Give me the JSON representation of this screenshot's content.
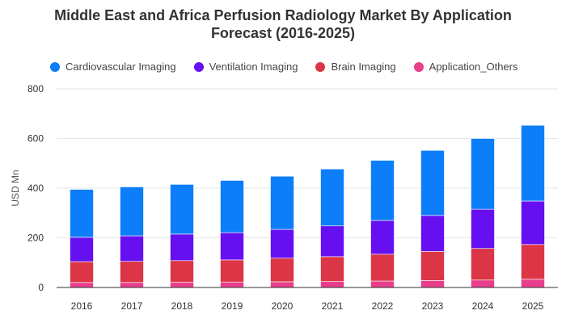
{
  "chart_data": {
    "type": "bar",
    "stacked": true,
    "title_line1": "Middle East and Africa Perfusion Radiology Market By Application",
    "title_line2": "Forecast (2016-2025)",
    "xlabel": "",
    "ylabel": "USD Mn",
    "ylim": [
      0,
      800
    ],
    "yticks": [
      "0",
      "200",
      "400",
      "600",
      "800"
    ],
    "grid": true,
    "legend_position": "top-left",
    "categories": [
      "2016",
      "2017",
      "2018",
      "2019",
      "2020",
      "2021",
      "2022",
      "2023",
      "2024",
      "2025"
    ],
    "series": [
      {
        "name": "Application_Others",
        "color": "#e83e8c",
        "values": [
          20,
          20,
          21,
          22,
          23,
          24,
          26,
          28,
          30,
          33
        ]
      },
      {
        "name": "Brain Imaging",
        "color": "#dc3545",
        "values": [
          84,
          85,
          87,
          89,
          95,
          100,
          108,
          117,
          127,
          140
        ]
      },
      {
        "name": "Ventilation Imaging",
        "color": "#6610f2",
        "values": [
          98,
          103,
          107,
          110,
          116,
          124,
          136,
          145,
          158,
          175
        ]
      },
      {
        "name": "Cardiovascular Imaging",
        "color": "#0d7ef9",
        "values": [
          193,
          197,
          200,
          210,
          214,
          229,
          242,
          262,
          285,
          305
        ]
      }
    ]
  },
  "legend": [
    {
      "name": "Cardiovascular Imaging",
      "color": "#0d7ef9"
    },
    {
      "name": "Ventilation Imaging",
      "color": "#6610f2"
    },
    {
      "name": "Brain Imaging",
      "color": "#dc3545"
    },
    {
      "name": "Application_Others",
      "color": "#e83e8c"
    }
  ]
}
